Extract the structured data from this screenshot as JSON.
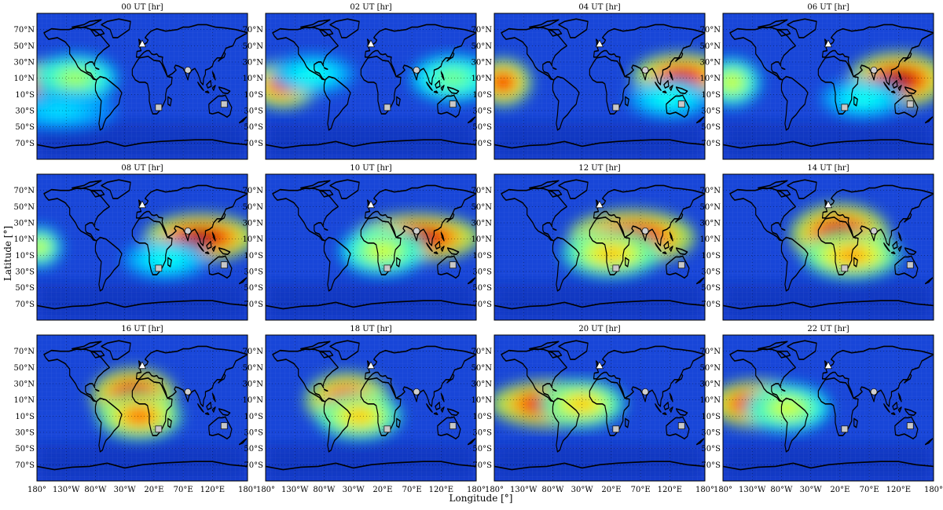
{
  "figure": {
    "xlabel": "Longitude [°]",
    "ylabel": "Latitude [°]"
  },
  "lat_ticks": [
    "70°N",
    "50°N",
    "30°N",
    "10°N",
    "10°S",
    "30°S",
    "50°S",
    "70°S"
  ],
  "lon_ticks": [
    "180°",
    "130°W",
    "80°W",
    "30°W",
    "20°E",
    "70°E",
    "120°E",
    "180°"
  ],
  "colors": {
    "colormap": "jet",
    "ocean_background": "#1846d8",
    "coastline": "#000000",
    "triangle_marker": "#ffffff",
    "circle_marker": "#cfcfcf",
    "square_marker": "#c8c8c8"
  },
  "chart_data": [
    {
      "type": "heatmap",
      "title": "00 UT [hr]",
      "hotspots": [
        {
          "lon": -160,
          "lat": 2,
          "intensity": 1.0,
          "sx": 30,
          "sy": 12
        },
        {
          "lon": -115,
          "lat": 10,
          "intensity": 0.55,
          "sx": 30,
          "sy": 12
        },
        {
          "lon": -140,
          "lat": -30,
          "intensity": 0.35,
          "sx": 40,
          "sy": 10
        }
      ]
    },
    {
      "type": "heatmap",
      "title": "02 UT [hr]",
      "hotspots": [
        {
          "lon": -150,
          "lat": 2,
          "intensity": 0.9,
          "sx": 25,
          "sy": 12
        },
        {
          "lon": 140,
          "lat": 10,
          "intensity": 0.5,
          "sx": 30,
          "sy": 12
        },
        {
          "lon": -100,
          "lat": 15,
          "intensity": 0.4,
          "sx": 30,
          "sy": 10
        }
      ]
    },
    {
      "type": "heatmap",
      "title": "04 UT [hr]",
      "hotspots": [
        {
          "lon": -165,
          "lat": 5,
          "intensity": 0.9,
          "sx": 20,
          "sy": 12
        },
        {
          "lon": 140,
          "lat": 12,
          "intensity": 0.95,
          "sx": 35,
          "sy": 12
        },
        {
          "lon": 120,
          "lat": -15,
          "intensity": 0.4,
          "sx": 30,
          "sy": 10
        }
      ]
    },
    {
      "type": "heatmap",
      "title": "06 UT [hr]",
      "hotspots": [
        {
          "lon": 120,
          "lat": 8,
          "intensity": 1.0,
          "sx": 35,
          "sy": 14
        },
        {
          "lon": -165,
          "lat": 5,
          "intensity": 0.6,
          "sx": 20,
          "sy": 12
        },
        {
          "lon": 60,
          "lat": -15,
          "intensity": 0.4,
          "sx": 30,
          "sy": 10
        }
      ]
    },
    {
      "type": "heatmap",
      "title": "08 UT [hr]",
      "hotspots": [
        {
          "lon": 100,
          "lat": 12,
          "intensity": 1.0,
          "sx": 40,
          "sy": 12
        },
        {
          "lon": -175,
          "lat": 0,
          "intensity": 0.6,
          "sx": 15,
          "sy": 10
        },
        {
          "lon": 40,
          "lat": -15,
          "intensity": 0.4,
          "sx": 30,
          "sy": 10
        }
      ]
    },
    {
      "type": "heatmap",
      "title": "10 UT [hr]",
      "hotspots": [
        {
          "lon": 80,
          "lat": 12,
          "intensity": 1.0,
          "sx": 45,
          "sy": 12
        },
        {
          "lon": 20,
          "lat": -5,
          "intensity": 0.6,
          "sx": 30,
          "sy": 12
        }
      ]
    },
    {
      "type": "heatmap",
      "title": "12 UT [hr]",
      "hotspots": [
        {
          "lon": 55,
          "lat": 12,
          "intensity": 1.0,
          "sx": 45,
          "sy": 14
        },
        {
          "lon": 20,
          "lat": -8,
          "intensity": 0.7,
          "sx": 35,
          "sy": 12
        }
      ]
    },
    {
      "type": "heatmap",
      "title": "14 UT [hr]",
      "hotspots": [
        {
          "lon": 20,
          "lat": 15,
          "intensity": 1.0,
          "sx": 35,
          "sy": 16
        },
        {
          "lon": 40,
          "lat": -10,
          "intensity": 0.75,
          "sx": 35,
          "sy": 12
        }
      ]
    },
    {
      "type": "heatmap",
      "title": "16 UT [hr]",
      "hotspots": [
        {
          "lon": -15,
          "lat": 15,
          "intensity": 1.0,
          "sx": 30,
          "sy": 14
        },
        {
          "lon": -5,
          "lat": -10,
          "intensity": 0.8,
          "sx": 30,
          "sy": 12
        }
      ]
    },
    {
      "type": "heatmap",
      "title": "18 UT [hr]",
      "hotspots": [
        {
          "lon": -40,
          "lat": 10,
          "intensity": 0.95,
          "sx": 30,
          "sy": 14
        },
        {
          "lon": -20,
          "lat": -10,
          "intensity": 0.7,
          "sx": 30,
          "sy": 12
        }
      ]
    },
    {
      "type": "heatmap",
      "title": "20 UT [hr]",
      "hotspots": [
        {
          "lon": -80,
          "lat": 5,
          "intensity": 1.0,
          "sx": 45,
          "sy": 12
        },
        {
          "lon": -30,
          "lat": 5,
          "intensity": 0.7,
          "sx": 30,
          "sy": 12
        }
      ]
    },
    {
      "type": "heatmap",
      "title": "22 UT [hr]",
      "hotspots": [
        {
          "lon": -120,
          "lat": 5,
          "intensity": 1.0,
          "sx": 35,
          "sy": 12
        },
        {
          "lon": -70,
          "lat": 0,
          "intensity": 0.6,
          "sx": 30,
          "sy": 12
        }
      ]
    }
  ],
  "markers": {
    "triangle": [
      {
        "lon": 0,
        "lat": 52
      }
    ],
    "circle": [
      {
        "lon": 78,
        "lat": 20
      }
    ],
    "square": [
      {
        "lon": 28,
        "lat": -26
      },
      {
        "lon": 140,
        "lat": -22
      }
    ]
  }
}
